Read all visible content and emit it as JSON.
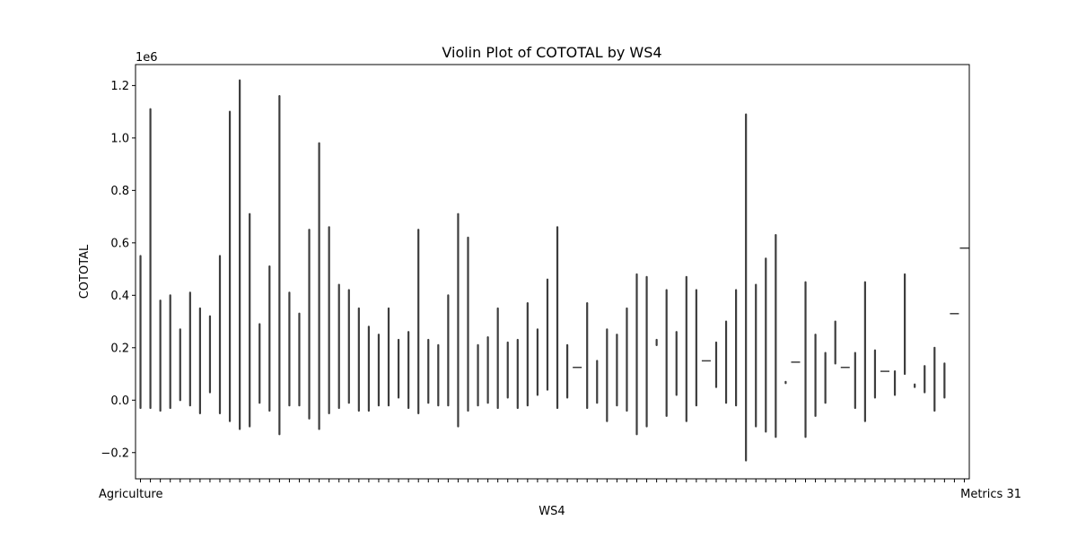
{
  "chart_data": {
    "type": "violin",
    "title": "Violin Plot of COTOTAL by WS4",
    "xlabel": "WS4",
    "ylabel": "COTOTAL",
    "y_offset_label": "1e6",
    "ylim": [
      -0.3,
      1.28
    ],
    "yticks": [
      {
        "value": -0.2,
        "label": "−0.2"
      },
      {
        "value": 0.0,
        "label": "0.0"
      },
      {
        "value": 0.2,
        "label": "0.2"
      },
      {
        "value": 0.4,
        "label": "0.4"
      },
      {
        "value": 0.6,
        "label": "0.6"
      },
      {
        "value": 0.8,
        "label": "0.8"
      },
      {
        "value": 1.0,
        "label": "1.0"
      },
      {
        "value": 1.2,
        "label": "1.2"
      }
    ],
    "grid": false,
    "category_labels_visible": [
      "Agriculture",
      "Metrics 31"
    ],
    "violin_color": "#3d3d3d",
    "violins": [
      [
        -0.03,
        0.55
      ],
      [
        -0.03,
        1.11
      ],
      [
        -0.04,
        0.38
      ],
      [
        -0.03,
        0.4
      ],
      [
        0.0,
        0.27
      ],
      [
        -0.02,
        0.41
      ],
      [
        -0.05,
        0.35
      ],
      [
        0.03,
        0.32
      ],
      [
        -0.05,
        0.55
      ],
      [
        -0.08,
        1.1
      ],
      [
        -0.11,
        1.22
      ],
      [
        -0.1,
        0.71
      ],
      [
        -0.01,
        0.29
      ],
      [
        -0.04,
        0.51
      ],
      [
        -0.13,
        1.16
      ],
      [
        -0.02,
        0.41
      ],
      [
        -0.02,
        0.33
      ],
      [
        -0.07,
        0.65
      ],
      [
        -0.11,
        0.98
      ],
      [
        -0.05,
        0.66
      ],
      [
        -0.03,
        0.44
      ],
      [
        -0.01,
        0.42
      ],
      [
        -0.04,
        0.35
      ],
      [
        -0.04,
        0.28
      ],
      [
        -0.02,
        0.25
      ],
      [
        -0.02,
        0.35
      ],
      [
        0.01,
        0.23
      ],
      [
        -0.03,
        0.26
      ],
      [
        -0.05,
        0.65
      ],
      [
        -0.01,
        0.23
      ],
      [
        -0.02,
        0.21
      ],
      [
        -0.02,
        0.4
      ],
      [
        -0.1,
        0.71
      ],
      [
        -0.04,
        0.62
      ],
      [
        -0.02,
        0.21
      ],
      [
        -0.01,
        0.24
      ],
      [
        -0.03,
        0.35
      ],
      [
        0.01,
        0.22
      ],
      [
        -0.03,
        0.23
      ],
      [
        -0.02,
        0.37
      ],
      [
        0.02,
        0.27
      ],
      [
        0.04,
        0.46
      ],
      [
        -0.03,
        0.66
      ],
      [
        0.01,
        0.21
      ],
      [
        0.125,
        0.125
      ],
      [
        -0.03,
        0.37
      ],
      [
        -0.01,
        0.15
      ],
      [
        -0.08,
        0.27
      ],
      [
        -0.02,
        0.25
      ],
      [
        -0.04,
        0.35
      ],
      [
        -0.13,
        0.48
      ],
      [
        -0.1,
        0.47
      ],
      [
        0.21,
        0.23
      ],
      [
        -0.06,
        0.42
      ],
      [
        0.02,
        0.26
      ],
      [
        -0.08,
        0.47
      ],
      [
        -0.02,
        0.42
      ],
      [
        0.15,
        0.15
      ],
      [
        0.05,
        0.22
      ],
      [
        -0.01,
        0.3
      ],
      [
        -0.02,
        0.42
      ],
      [
        -0.23,
        1.09
      ],
      [
        -0.1,
        0.44
      ],
      [
        -0.12,
        0.54
      ],
      [
        -0.14,
        0.63
      ],
      [
        0.065,
        0.07
      ],
      [
        0.145,
        0.145
      ],
      [
        -0.14,
        0.45
      ],
      [
        -0.06,
        0.25
      ],
      [
        -0.01,
        0.18
      ],
      [
        0.14,
        0.3
      ],
      [
        0.125,
        0.125
      ],
      [
        -0.03,
        0.18
      ],
      [
        -0.08,
        0.45
      ],
      [
        0.01,
        0.19
      ],
      [
        0.11,
        0.11
      ],
      [
        0.02,
        0.11
      ],
      [
        0.1,
        0.48
      ],
      [
        0.05,
        0.06
      ],
      [
        0.03,
        0.13
      ],
      [
        -0.04,
        0.2
      ],
      [
        0.01,
        0.14
      ],
      [
        0.33,
        0.33
      ],
      [
        0.58,
        0.58
      ]
    ]
  }
}
